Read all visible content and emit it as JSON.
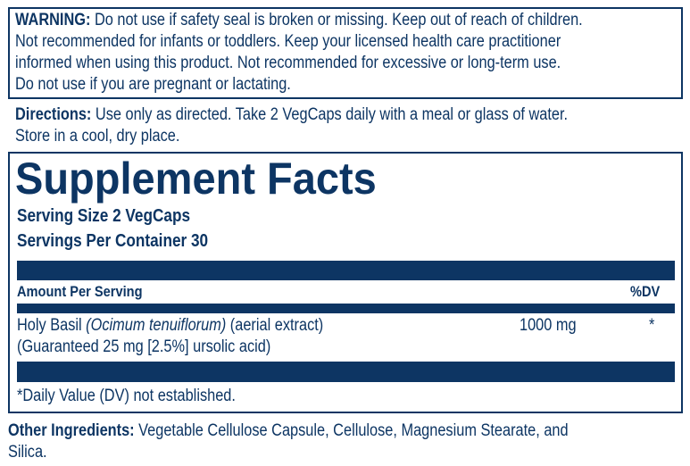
{
  "warning": {
    "label": "WARNING:",
    "lines": [
      " Do not use if safety seal is broken or missing. Keep out of reach of children.",
      "Not recommended for infants or toddlers. Keep your licensed health care practitioner",
      "informed when using this product. Not recommended for excessive or long-term use.",
      "Do not use if you are pregnant or lactating."
    ]
  },
  "directions": {
    "label": "Directions:",
    "lines": [
      " Use only as directed. Take 2 VegCaps daily with a meal or glass of water.",
      "Store in a cool, dry place."
    ]
  },
  "facts": {
    "title": "Supplement Facts",
    "serving_size": "Serving Size 2 VegCaps",
    "servings_per_container": "Servings Per Container 30",
    "amount_header": "Amount Per Serving",
    "dv_header": "%DV",
    "ingredient": {
      "name": "Holy Basil ",
      "latin": "(Ocimum tenuiflorum)",
      "part": " (aerial extract)",
      "note": " (Guaranteed 25 mg [2.5%] ursolic acid)",
      "amount": "1000 mg",
      "dv": "*"
    },
    "footnote": "*Daily Value (DV) not established."
  },
  "other_ingredients": {
    "label": "Other Ingredients:",
    "lines": [
      " Vegetable Cellulose Capsule, Cellulose, Magnesium Stearate, and",
      "Silica."
    ]
  },
  "colors": {
    "text": "#0d3563",
    "background": "#ffffff"
  }
}
